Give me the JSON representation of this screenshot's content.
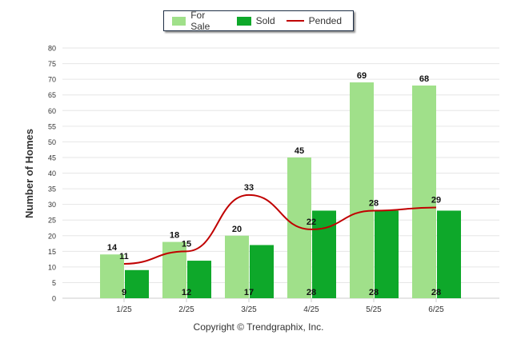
{
  "legend": {
    "items": [
      {
        "label": "For Sale",
        "color": "#a0e08a"
      },
      {
        "label": "Sold",
        "color": "#0ea82a"
      },
      {
        "label": "Pended",
        "color": "#c00000"
      }
    ]
  },
  "copyright": "Copyright © Trendgraphix, Inc.",
  "chart_data": {
    "type": "bar",
    "categories": [
      "1/25",
      "2/25",
      "3/25",
      "4/25",
      "5/25",
      "6/25"
    ],
    "series": [
      {
        "name": "For Sale",
        "type": "bar",
        "color": "#a0e08a",
        "values": [
          14,
          18,
          20,
          45,
          69,
          68
        ]
      },
      {
        "name": "Sold",
        "type": "bar",
        "color": "#0ea82a",
        "values": [
          9,
          12,
          17,
          28,
          28,
          28
        ]
      },
      {
        "name": "Pended",
        "type": "line",
        "color": "#c00000",
        "values": [
          11,
          15,
          33,
          22,
          28,
          29
        ]
      }
    ],
    "ylabel": "Number of Homes",
    "xlabel": "",
    "ylim": [
      0,
      80
    ],
    "yticks": [
      0,
      5,
      10,
      15,
      20,
      25,
      30,
      35,
      40,
      45,
      50,
      55,
      60,
      65,
      70,
      75,
      80
    ],
    "grid": true,
    "legend_position": "top-center"
  }
}
